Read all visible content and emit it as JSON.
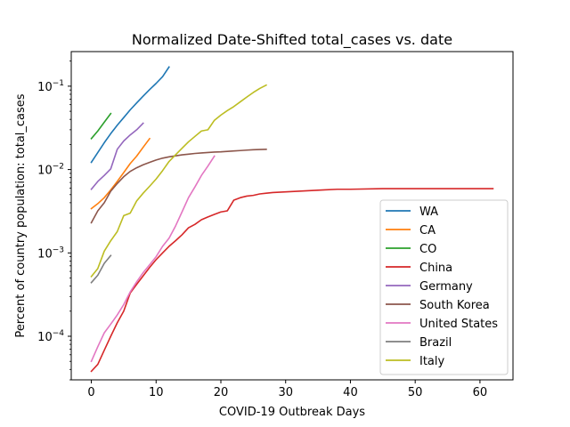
{
  "chart_data": {
    "type": "line",
    "title": "Normalized Date-Shifted total_cases vs. date",
    "xlabel": "COVID-19 Outbreak Days",
    "ylabel": "Percent of country population: total_cases",
    "xlim": [
      -3.1,
      65.1
    ],
    "ylim": [
      3e-05,
      0.26
    ],
    "yscale": "log",
    "x_ticks": [
      0,
      10,
      20,
      30,
      40,
      50,
      60
    ],
    "x_tick_labels": [
      "0",
      "10",
      "20",
      "30",
      "40",
      "50",
      "60"
    ],
    "y_ticks": [
      0.0001,
      0.001,
      0.01,
      0.1
    ],
    "y_tick_labels": [
      {
        "base": "10",
        "exp": "−4"
      },
      {
        "base": "10",
        "exp": "−3"
      },
      {
        "base": "10",
        "exp": "−2"
      },
      {
        "base": "10",
        "exp": "−1"
      }
    ],
    "grid": false,
    "legend_position": "lower-right",
    "series": [
      {
        "name": "WA",
        "color": "#1f77b4",
        "x": [
          0,
          1,
          2,
          3,
          4,
          5,
          6,
          7,
          8,
          9,
          10,
          11,
          12
        ],
        "y": [
          0.0122,
          0.016,
          0.021,
          0.027,
          0.034,
          0.042,
          0.052,
          0.063,
          0.076,
          0.091,
          0.108,
          0.13,
          0.17
        ]
      },
      {
        "name": "CA",
        "color": "#ff7f0e",
        "x": [
          0,
          1,
          2,
          3,
          4,
          5,
          6,
          7,
          8,
          9
        ],
        "y": [
          0.0034,
          0.0039,
          0.0046,
          0.0057,
          0.0072,
          0.0092,
          0.0118,
          0.0145,
          0.0185,
          0.0235
        ]
      },
      {
        "name": "CO",
        "color": "#2ca02c",
        "x": [
          0,
          1,
          2,
          3
        ],
        "y": [
          0.0235,
          0.029,
          0.037,
          0.047
        ]
      },
      {
        "name": "China",
        "color": "#d62728",
        "x": [
          0,
          1,
          2,
          3,
          4,
          5,
          6,
          7,
          8,
          9,
          10,
          11,
          12,
          13,
          14,
          15,
          16,
          17,
          18,
          19,
          20,
          21,
          22,
          23,
          24,
          25,
          26,
          27,
          28,
          30,
          32,
          34,
          36,
          38,
          40,
          45,
          50,
          55,
          60,
          62
        ],
        "y": [
          3.8e-05,
          4.6e-05,
          6.8e-05,
          0.0001,
          0.000145,
          0.0002,
          0.00033,
          0.00042,
          0.00053,
          0.00067,
          0.00083,
          0.001,
          0.0012,
          0.0014,
          0.00165,
          0.002,
          0.0022,
          0.0025,
          0.0027,
          0.0029,
          0.0031,
          0.0032,
          0.0043,
          0.0046,
          0.0048,
          0.0049,
          0.0051,
          0.0052,
          0.0053,
          0.0054,
          0.0055,
          0.0056,
          0.0057,
          0.0058,
          0.0058,
          0.0059,
          0.0059,
          0.0059,
          0.0059,
          0.0059
        ]
      },
      {
        "name": "Germany",
        "color": "#9467bd",
        "x": [
          0,
          1,
          2,
          3,
          4,
          5,
          6,
          7,
          8
        ],
        "y": [
          0.0058,
          0.0072,
          0.0085,
          0.0102,
          0.0175,
          0.022,
          0.026,
          0.03,
          0.036
        ]
      },
      {
        "name": "South Korea",
        "color": "#8c564b",
        "x": [
          0,
          1,
          2,
          3,
          4,
          5,
          6,
          7,
          8,
          9,
          10,
          11,
          12,
          13,
          14,
          15,
          16,
          17,
          18,
          19,
          20,
          21,
          22,
          23,
          24,
          25,
          26,
          27
        ],
        "y": [
          0.0023,
          0.0032,
          0.004,
          0.0055,
          0.0068,
          0.0082,
          0.0095,
          0.0105,
          0.0114,
          0.0122,
          0.013,
          0.0137,
          0.0142,
          0.0146,
          0.015,
          0.0153,
          0.0156,
          0.0158,
          0.016,
          0.0162,
          0.0163,
          0.0165,
          0.0167,
          0.0169,
          0.0171,
          0.0173,
          0.0174,
          0.0175
        ]
      },
      {
        "name": "United States",
        "color": "#e377c2",
        "x": [
          0,
          1,
          2,
          3,
          4,
          5,
          6,
          7,
          8,
          9,
          10,
          11,
          12,
          13,
          14,
          15,
          16,
          17,
          18,
          19
        ],
        "y": [
          5e-05,
          7.5e-05,
          0.00011,
          0.00014,
          0.00018,
          0.00024,
          0.00034,
          0.00045,
          0.00058,
          0.00072,
          0.0009,
          0.0012,
          0.0015,
          0.0021,
          0.0031,
          0.0046,
          0.0062,
          0.0085,
          0.011,
          0.0145
        ]
      },
      {
        "name": "Brazil",
        "color": "#7f7f7f",
        "x": [
          0,
          1,
          2,
          3
        ],
        "y": [
          0.00044,
          0.00054,
          0.00075,
          0.00093
        ]
      },
      {
        "name": "Italy",
        "color": "#bcbd22",
        "x": [
          0,
          1,
          2,
          3,
          4,
          5,
          6,
          7,
          8,
          9,
          10,
          11,
          12,
          13,
          14,
          15,
          16,
          17,
          18,
          19,
          20,
          21,
          22,
          23,
          24,
          25,
          26,
          27
        ],
        "y": [
          0.00052,
          0.00065,
          0.00105,
          0.0014,
          0.0018,
          0.0028,
          0.003,
          0.0042,
          0.0052,
          0.0063,
          0.0077,
          0.0097,
          0.0125,
          0.015,
          0.018,
          0.0215,
          0.025,
          0.029,
          0.03,
          0.039,
          0.045,
          0.051,
          0.057,
          0.065,
          0.074,
          0.084,
          0.094,
          0.103
        ]
      }
    ]
  }
}
